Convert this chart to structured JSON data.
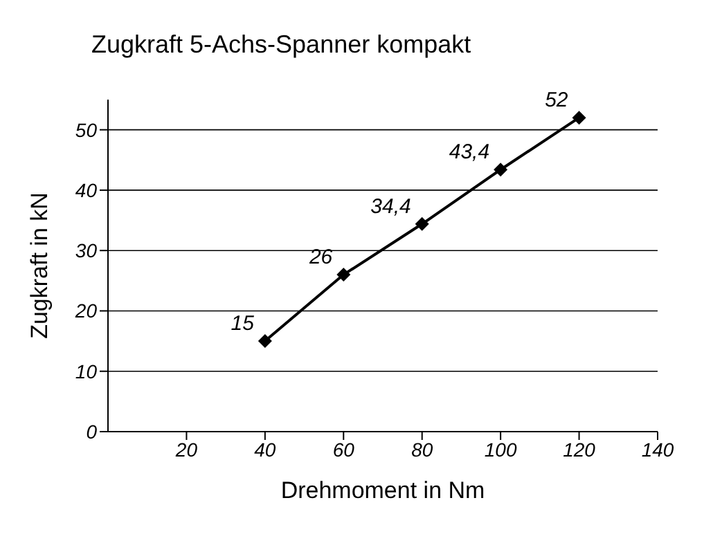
{
  "chart_data": {
    "type": "line",
    "title": "Zugkraft 5-Achs-Spanner kompakt",
    "xlabel": "Drehmoment in Nm",
    "ylabel": "Zugkraft in kN",
    "x": [
      40,
      60,
      80,
      100,
      120
    ],
    "series": [
      {
        "color": "#000000",
        "values": [
          15,
          26,
          34.4,
          43.4,
          52
        ],
        "value_labels": [
          "15",
          "26",
          "34,4",
          "43,4",
          "52"
        ]
      }
    ],
    "xlim": [
      0,
      140
    ],
    "xticks": [
      20,
      40,
      60,
      80,
      100,
      120,
      140
    ],
    "ylim": [
      0,
      55
    ],
    "yticks": [
      0,
      10,
      20,
      30,
      40,
      50
    ],
    "grid": "y",
    "marker": "diamond",
    "line_style": "solid"
  }
}
